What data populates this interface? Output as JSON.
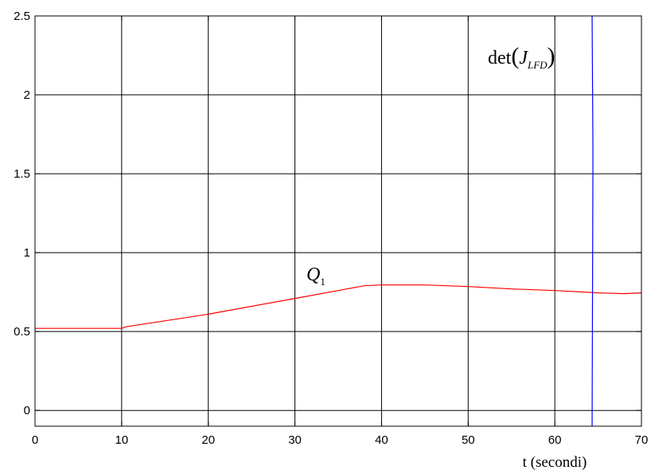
{
  "chart_data": {
    "type": "line",
    "title": "",
    "xlabel": "t (secondi)",
    "ylabel": "",
    "xlim": [
      0,
      70
    ],
    "ylim": [
      -0.1,
      2.5
    ],
    "xticks": [
      0,
      10,
      20,
      30,
      40,
      50,
      60,
      70
    ],
    "yticks": [
      0,
      0.5,
      1,
      1.5,
      2,
      2.5
    ],
    "xtick_labels": [
      "0",
      "10",
      "20",
      "30",
      "40",
      "50",
      "60",
      "70"
    ],
    "ytick_labels": [
      "0",
      "0.5",
      "1",
      "1.5",
      "2",
      "2.5"
    ],
    "grid": true,
    "series": [
      {
        "name": "Q1",
        "color": "#ff0000",
        "x": [
          0,
          10,
          10.5,
          20,
          30,
          35,
          38,
          40,
          45,
          50,
          55,
          60,
          65,
          68,
          70
        ],
        "y": [
          0.52,
          0.52,
          0.53,
          0.61,
          0.71,
          0.76,
          0.79,
          0.795,
          0.795,
          0.785,
          0.77,
          0.76,
          0.745,
          0.74,
          0.745
        ]
      },
      {
        "name": "det(J_LFD)",
        "color": "#0000ff",
        "x": [
          64.3,
          64.4,
          64.4,
          64.3
        ],
        "y": [
          2.5,
          1.7,
          1.5,
          -0.1
        ]
      }
    ],
    "annotations": [
      {
        "label_main": "Q",
        "label_sub": "1",
        "x": 31.5,
        "y": 0.85
      },
      {
        "label_main": "det",
        "label_paren_open": "(",
        "label_j": "J",
        "label_sub": "LFD",
        "label_paren_close": ")",
        "x": 52.7,
        "y": 2.22
      }
    ]
  }
}
